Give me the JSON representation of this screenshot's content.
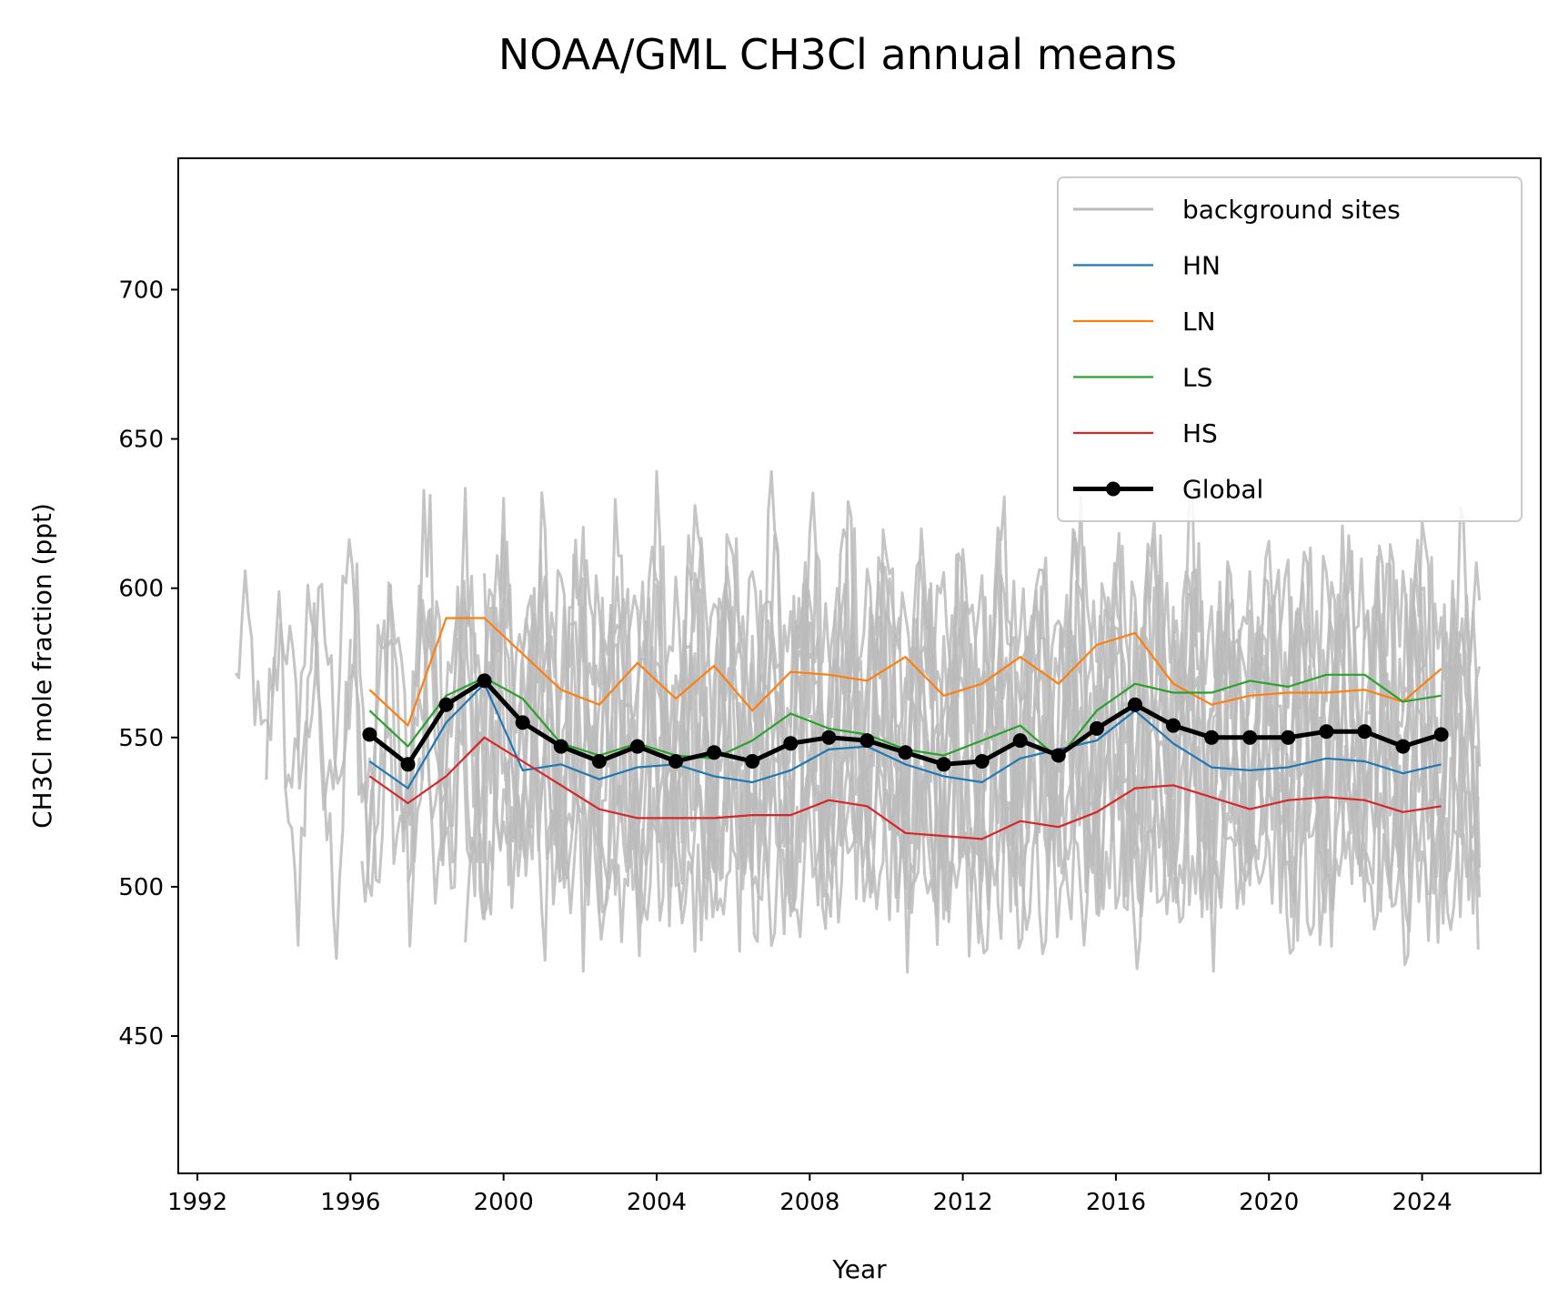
{
  "chart_data": {
    "type": "line",
    "title": "NOAA/GML CH3Cl annual means",
    "xlabel": "Year",
    "ylabel": "CH3Cl mole fraction (ppt)",
    "xlim": [
      1991.5,
      2027.1
    ],
    "ylim": [
      404,
      744
    ],
    "xticks": [
      1992,
      1996,
      2000,
      2004,
      2008,
      2012,
      2016,
      2020,
      2024
    ],
    "yticks": [
      450,
      500,
      550,
      600,
      650,
      700
    ],
    "grid": false,
    "legend_position": "top-right",
    "background_sites": {
      "name": "background sites",
      "color": "#bbbbbb",
      "sites": [
        {
          "start": 1993.0,
          "base": 566,
          "amp": 22,
          "noise": 18,
          "phase": 0.0,
          "end": 1996.0
        },
        {
          "start": 1993.8,
          "base": 540,
          "amp": 45,
          "noise": 25,
          "phase": 1.2,
          "end": 2025.5
        },
        {
          "start": 1994.3,
          "base": 560,
          "amp": 40,
          "noise": 22,
          "phase": 2.1,
          "end": 2025.5
        },
        {
          "start": 1996.0,
          "base": 555,
          "amp": 42,
          "noise": 25,
          "phase": 0.7,
          "end": 2025.5
        },
        {
          "start": 1996.3,
          "base": 545,
          "amp": 38,
          "noise": 20,
          "phase": 2.8,
          "end": 2025.5
        },
        {
          "start": 1997.5,
          "base": 565,
          "amp": 48,
          "noise": 28,
          "phase": 1.6,
          "end": 2025.5
        },
        {
          "start": 1997.8,
          "base": 550,
          "amp": 35,
          "noise": 20,
          "phase": 3.5,
          "end": 2025.5
        },
        {
          "start": 1999.0,
          "base": 535,
          "amp": 40,
          "noise": 24,
          "phase": 4.2,
          "end": 2025.5
        },
        {
          "start": 1999.5,
          "base": 560,
          "amp": 34,
          "noise": 18,
          "phase": 5.0,
          "end": 2025.5
        },
        {
          "start": 2001.0,
          "base": 525,
          "amp": 30,
          "noise": 16,
          "phase": 0.3,
          "end": 2025.5
        },
        {
          "start": 2004.0,
          "base": 545,
          "amp": 44,
          "noise": 24,
          "phase": 2.4,
          "end": 2025.5
        }
      ]
    },
    "x": [
      1996.5,
      1997.5,
      1998.5,
      1999.5,
      2000.5,
      2001.5,
      2002.5,
      2003.5,
      2004.5,
      2005.5,
      2006.5,
      2007.5,
      2008.5,
      2009.5,
      2010.5,
      2011.5,
      2012.5,
      2013.5,
      2014.5,
      2015.5,
      2016.5,
      2017.5,
      2018.5,
      2019.5,
      2020.5,
      2021.5,
      2022.5,
      2023.5,
      2024.5
    ],
    "series": [
      {
        "name": "HN",
        "color": "#1f77b4",
        "values": [
          542,
          533,
          555,
          568,
          539,
          541,
          536,
          540,
          541,
          537,
          535,
          539,
          546,
          547,
          541,
          537,
          535,
          543,
          546,
          549,
          559,
          548,
          540,
          539,
          540,
          543,
          542,
          538,
          541
        ]
      },
      {
        "name": "LN",
        "color": "#ff7f0e",
        "values": [
          566,
          554,
          590,
          590,
          578,
          566,
          561,
          575,
          563,
          574,
          559,
          572,
          571,
          569,
          577,
          564,
          568,
          577,
          568,
          581,
          585,
          568,
          561,
          564,
          565,
          565,
          566,
          562,
          573
        ]
      },
      {
        "name": "LS",
        "color": "#2ca02c",
        "values": [
          559,
          547,
          564,
          570,
          563,
          548,
          544,
          548,
          544,
          543,
          549,
          558,
          553,
          551,
          546,
          544,
          549,
          554,
          543,
          559,
          568,
          565,
          565,
          569,
          567,
          571,
          571,
          562,
          564
        ]
      },
      {
        "name": "HS",
        "color": "#d62728",
        "values": [
          537,
          528,
          537,
          550,
          542,
          534,
          526,
          523,
          523,
          523,
          524,
          524,
          529,
          527,
          518,
          517,
          516,
          522,
          520,
          525,
          533,
          534,
          530,
          526,
          529,
          530,
          529,
          525,
          527
        ]
      },
      {
        "name": "Global",
        "color": "#000000",
        "values": [
          551,
          541,
          561,
          569,
          555,
          547,
          542,
          547,
          542,
          545,
          542,
          548,
          550,
          549,
          545,
          541,
          542,
          549,
          544,
          553,
          561,
          554,
          550,
          550,
          550,
          552,
          552,
          547,
          551
        ]
      }
    ]
  }
}
